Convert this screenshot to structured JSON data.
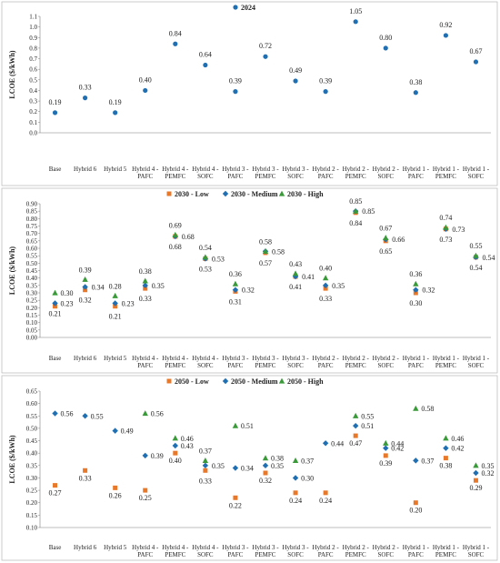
{
  "chart_data": [
    {
      "type": "scatter",
      "ylabel": "LCOE ($/kWh)",
      "ylim": [
        0,
        1.1
      ],
      "ystep": 0.1,
      "ytick_decimals": 1,
      "grid": false,
      "legend_position": "top-center",
      "categories": [
        [
          "Base"
        ],
        [
          "Hybrid 6"
        ],
        [
          "Hybrid 5"
        ],
        [
          "Hybrid 4 -",
          "PAFC"
        ],
        [
          "Hybrid 4 -",
          "PEMFC"
        ],
        [
          "Hybrid 4 -",
          "SOFC"
        ],
        [
          "Hybrid 3 -",
          "PAFC"
        ],
        [
          "Hybrid 3 -",
          "PEMFC"
        ],
        [
          "Hybrid 3 -",
          "SOFC"
        ],
        [
          "Hybrid 2 -",
          "PAFC"
        ],
        [
          "Hybrid 2 -",
          "PEMFC"
        ],
        [
          "Hybrid 2 -",
          "SOFC"
        ],
        [
          "Hybrid 1 -",
          "PAFC"
        ],
        [
          "Hybrid 1 -",
          "PEMFC"
        ],
        [
          "Hybrid 1 -",
          "SOFC"
        ]
      ],
      "series": [
        {
          "name": "2024",
          "marker": "circle",
          "color": "#1f6fb2",
          "values": [
            0.19,
            0.33,
            0.19,
            0.4,
            0.84,
            0.64,
            0.39,
            0.72,
            0.49,
            0.39,
            1.05,
            0.8,
            0.38,
            0.92,
            0.67
          ],
          "labels": [
            "0.19",
            "0.33",
            "0.19",
            "0.40",
            "0.84",
            "0.64",
            "0.39",
            "0.72",
            "0.49",
            "0.39",
            "1.05",
            "0.80",
            "0.38",
            "0.92",
            "0.67"
          ]
        }
      ]
    },
    {
      "type": "scatter",
      "ylabel": "LCOE ($/kWh)",
      "ylim": [
        0,
        0.9
      ],
      "ystep": 0.05,
      "ytick_decimals": 2,
      "grid": false,
      "legend_position": "top-center",
      "categories": [
        [
          "Base"
        ],
        [
          "Hybrid 6"
        ],
        [
          "Hybrid 5"
        ],
        [
          "Hybrid 4 -",
          "PAFC"
        ],
        [
          "Hybrid 4 -",
          "PEMFC"
        ],
        [
          "Hybrid 4 -",
          "SOFC"
        ],
        [
          "Hybrid 3 -",
          "PAFC"
        ],
        [
          "Hybrid 3 -",
          "PEMFC"
        ],
        [
          "Hybrid 3 -",
          "SOFC"
        ],
        [
          "Hybrid 2 -",
          "PAFC"
        ],
        [
          "Hybrid 2 -",
          "PEMFC"
        ],
        [
          "Hybrid 2 -",
          "SOFC"
        ],
        [
          "Hybrid 1 -",
          "PAFC"
        ],
        [
          "Hybrid 1 -",
          "PEMFC"
        ],
        [
          "Hybrid 1 -",
          "SOFC"
        ]
      ],
      "series": [
        {
          "name": "2030 - Low",
          "marker": "square",
          "color": "#e8782a",
          "values": [
            0.21,
            0.32,
            0.21,
            0.33,
            0.68,
            0.53,
            0.31,
            0.57,
            0.41,
            0.33,
            0.84,
            0.65,
            0.3,
            0.73,
            0.54
          ],
          "labels": [
            "0.21",
            "0.32",
            "0.21",
            "0.33",
            "0.68",
            "0.53",
            "0.31",
            "0.57",
            "0.41",
            "0.33",
            "0.84",
            "0.65",
            "0.30",
            "0.73",
            "0.54"
          ]
        },
        {
          "name": "2030 - Medium",
          "marker": "diamond",
          "color": "#1f6fb2",
          "values": [
            0.23,
            0.34,
            0.23,
            0.35,
            0.68,
            0.53,
            0.32,
            0.58,
            0.41,
            0.35,
            0.85,
            0.66,
            0.32,
            0.73,
            0.54
          ],
          "labels": [
            "0.23",
            "0.34",
            "0.23",
            "0.35",
            "0.68",
            "0.53",
            "0.32",
            "0.58",
            "0.41",
            "0.35",
            "0.85",
            "0.66",
            "0.32",
            "0.73",
            "0.54"
          ]
        },
        {
          "name": "2030 - High",
          "marker": "triangle",
          "color": "#3a9a3a",
          "values": [
            0.3,
            0.39,
            0.28,
            0.38,
            0.69,
            0.54,
            0.36,
            0.58,
            0.43,
            0.4,
            0.85,
            0.67,
            0.36,
            0.74,
            0.55
          ],
          "labels": [
            "0.30",
            "0.39",
            "0.28",
            "0.38",
            "0.69",
            "0.54",
            "0.36",
            "0.58",
            "0.43",
            "0.40",
            "0.85",
            "0.67",
            "0.36",
            "0.74",
            "0.55"
          ]
        }
      ]
    },
    {
      "type": "scatter",
      "ylabel": "LCOE ($/kWh)",
      "ylim": [
        0.1,
        0.65
      ],
      "ystep": 0.05,
      "ytick_decimals": 2,
      "grid": false,
      "legend_position": "top-center",
      "categories": [
        [
          "Base"
        ],
        [
          "Hybrid 6"
        ],
        [
          "Hybrid 5"
        ],
        [
          "Hybrid 4 -",
          "PAFC"
        ],
        [
          "Hybrid 4 -",
          "PEMFC"
        ],
        [
          "Hybrid 4 -",
          "SOFC"
        ],
        [
          "Hybrid 3 -",
          "PAFC"
        ],
        [
          "Hybrid 3 -",
          "PEMFC"
        ],
        [
          "Hybrid 3 -",
          "SOFC"
        ],
        [
          "Hybrid 2 -",
          "PAFC"
        ],
        [
          "Hybrid 2 -",
          "PEMFC"
        ],
        [
          "Hybrid 2 -",
          "SOFC"
        ],
        [
          "Hybrid 1 -",
          "PAFC"
        ],
        [
          "Hybrid 1 -",
          "PEMFC"
        ],
        [
          "Hybrid 1 -",
          "SOFC"
        ]
      ],
      "series": [
        {
          "name": "2050 - Low",
          "marker": "square",
          "color": "#e8782a",
          "values": [
            0.27,
            0.33,
            0.26,
            0.25,
            0.4,
            0.33,
            0.22,
            0.32,
            0.24,
            0.24,
            0.47,
            0.39,
            0.2,
            0.38,
            0.29
          ],
          "labels": [
            "0.27",
            "0.33",
            "0.26",
            "0.25",
            "0.40",
            "0.33",
            "0.22",
            "0.32",
            "0.24",
            "0.24",
            "0.47",
            "0.39",
            "0.20",
            "0.38",
            "0.29"
          ]
        },
        {
          "name": "2050 - Medium",
          "marker": "diamond",
          "color": "#1f6fb2",
          "values": [
            0.56,
            0.55,
            0.49,
            0.39,
            0.43,
            0.35,
            0.34,
            0.35,
            0.3,
            0.44,
            0.51,
            0.42,
            0.37,
            0.42,
            0.32
          ],
          "labels": [
            "0.56",
            "0.55",
            "0.49",
            "0.39",
            "0.43",
            "0.35",
            "0.34",
            "0.35",
            "0.30",
            "0.44",
            "0.51",
            "0.42",
            "0.37",
            "0.42",
            "0.32"
          ]
        },
        {
          "name": "2050 - High",
          "marker": "triangle",
          "color": "#3a9a3a",
          "values": [
            null,
            null,
            null,
            0.56,
            0.46,
            0.37,
            0.51,
            0.38,
            0.37,
            null,
            0.55,
            0.44,
            0.58,
            0.46,
            0.35
          ],
          "labels": [
            "",
            "",
            "",
            "0.56",
            "0.46",
            "0.37",
            "0.51",
            "0.38",
            "0.37",
            "",
            "0.55",
            "0.44",
            "0.58",
            "0.46",
            "0.35"
          ]
        }
      ]
    }
  ]
}
